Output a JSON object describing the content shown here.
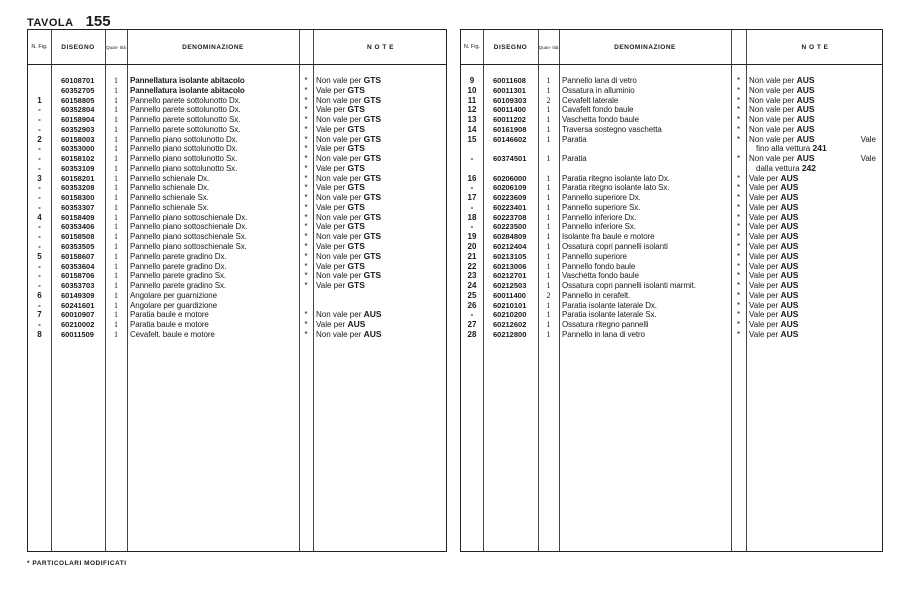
{
  "header": {
    "label": "TAVOLA",
    "number": "155"
  },
  "columns": {
    "fig": "N. Fig.",
    "disegno": "DISEGNO",
    "quantita": "Quan- tità",
    "denominazione": "DENOMINAZIONE",
    "note": "N O T E"
  },
  "footer": "* PARTICOLARI MODIFICATI",
  "left_rows": [
    {
      "fig": "",
      "code": "60108701",
      "qty": "1",
      "desc": "Pannellatura isolante abitacolo",
      "bold": true,
      "star": "*",
      "note": "Non vale per",
      "note_code": "GTS"
    },
    {
      "fig": "",
      "code": "60352705",
      "qty": "1",
      "desc": "Pannellatura isolante abitacolo",
      "bold": true,
      "star": "*",
      "note": "Vale per",
      "note_code": "GTS"
    },
    {
      "fig": "1",
      "code": "60158805",
      "qty": "1",
      "desc": "Pannello parete sottolunotto Dx.",
      "star": "*",
      "note": "Non vale per",
      "note_code": "GTS"
    },
    {
      "fig": "-",
      "code": "60352804",
      "qty": "1",
      "desc": "Pannello parete sottolunotto Dx.",
      "star": "*",
      "note": "Vale per",
      "note_code": "GTS"
    },
    {
      "fig": "-",
      "code": "60158904",
      "qty": "1",
      "desc": "Pannello parete sottolunotto Sx.",
      "star": "*",
      "note": "Non vale per",
      "note_code": "GTS"
    },
    {
      "fig": "-",
      "code": "60352903",
      "qty": "1",
      "desc": "Pannello parete sottolunotto Sx.",
      "star": "*",
      "note": "Vale per",
      "note_code": "GTS"
    },
    {
      "fig": "2",
      "code": "60158003",
      "qty": "1",
      "desc": "Pannello piano sottolunotto Dx.",
      "star": "*",
      "note": "Non vale per",
      "note_code": "GTS"
    },
    {
      "fig": "-",
      "code": "60353000",
      "qty": "1",
      "desc": "Pannello piano sottolunotto Dx.",
      "star": "*",
      "note": "Vale per",
      "note_code": "GTS"
    },
    {
      "fig": "-",
      "code": "60158102",
      "qty": "1",
      "desc": "Pannello piano sottolunotto Sx.",
      "star": "*",
      "note": "Non vale per",
      "note_code": "GTS"
    },
    {
      "fig": "-",
      "code": "60353109",
      "qty": "1",
      "desc": "Pannello piano sottolunotto Sx.",
      "star": "*",
      "note": "Vale per",
      "note_code": "GTS"
    },
    {
      "fig": "3",
      "code": "60158201",
      "qty": "1",
      "desc": "Pannello schienale Dx.",
      "star": "*",
      "note": "Non vale per",
      "note_code": "GTS"
    },
    {
      "fig": "-",
      "code": "60353208",
      "qty": "1",
      "desc": "Pannello schienale Dx.",
      "star": "*",
      "note": "Vale per",
      "note_code": "GTS"
    },
    {
      "fig": "-",
      "code": "60158300",
      "qty": "1",
      "desc": "Pannello schienale Sx.",
      "star": "*",
      "note": "Non vale per",
      "note_code": "GTS"
    },
    {
      "fig": "-",
      "code": "60353307",
      "qty": "1",
      "desc": "Pannello schienale Sx.",
      "star": "*",
      "note": "Vale per",
      "note_code": "GTS"
    },
    {
      "fig": "4",
      "code": "60158409",
      "qty": "1",
      "desc": "Pannello piano sottoschienale Dx.",
      "star": "*",
      "note": "Non vale per",
      "note_code": "GTS"
    },
    {
      "fig": "-",
      "code": "60353406",
      "qty": "1",
      "desc": "Pannello piano sottoschienale Dx.",
      "star": "*",
      "note": "Vale per",
      "note_code": "GTS"
    },
    {
      "fig": "-",
      "code": "60158508",
      "qty": "1",
      "desc": "Pannello piano sottoschienale Sx.",
      "star": "*",
      "note": "Non vale per",
      "note_code": "GTS"
    },
    {
      "fig": "-",
      "code": "60353505",
      "qty": "1",
      "desc": "Pannello piano sottoschienale Sx.",
      "star": "*",
      "note": "Vale per",
      "note_code": "GTS"
    },
    {
      "fig": "5",
      "code": "60158607",
      "qty": "1",
      "desc": "Pannello parete gradino Dx.",
      "star": "*",
      "note": "Non vale per",
      "note_code": "GTS"
    },
    {
      "fig": "-",
      "code": "60353604",
      "qty": "1",
      "desc": "Pannello parete gradino Dx.",
      "star": "*",
      "note": "Vale per",
      "note_code": "GTS"
    },
    {
      "fig": "-",
      "code": "60158706",
      "qty": "1",
      "desc": "Pannello parete gradino Sx.",
      "star": "*",
      "note": "Non vale per",
      "note_code": "GTS"
    },
    {
      "fig": "-",
      "code": "60353703",
      "qty": "1",
      "desc": "Pannello parete gradino Sx.",
      "star": "*",
      "note": "Vale per",
      "note_code": "GTS"
    },
    {
      "fig": "6",
      "code": "60149309",
      "qty": "1",
      "desc": "Angolare per guarnizione",
      "star": "",
      "note": "",
      "note_code": ""
    },
    {
      "fig": "-",
      "code": "60241601",
      "qty": "1",
      "desc": "Angolare per guardizione",
      "star": "",
      "note": "",
      "note_code": ""
    },
    {
      "fig": "7",
      "code": "60010907",
      "qty": "1",
      "desc": "Paratia baule e motore",
      "star": "*",
      "note": "Non vale per",
      "note_code": "AUS"
    },
    {
      "fig": "-",
      "code": "60210002",
      "qty": "1",
      "desc": "Paratia baule e motore",
      "star": "*",
      "note": "Vale per",
      "note_code": "AUS"
    },
    {
      "fig": "8",
      "code": "60011509",
      "qty": "1",
      "desc": "Cevafelt. baule e motore",
      "star": "*",
      "note": "Non vale per",
      "note_code": "AUS"
    }
  ],
  "right_rows": [
    {
      "fig": "9",
      "code": "60011608",
      "qty": "1",
      "desc": "Pannello lana di vetro",
      "star": "*",
      "note": "Non vale per",
      "note_code": "AUS"
    },
    {
      "fig": "10",
      "code": "60011301",
      "qty": "1",
      "desc": "Ossatura in alluminio",
      "star": "*",
      "note": "Non vale per",
      "note_code": "AUS"
    },
    {
      "fig": "11",
      "code": "60109303",
      "qty": "2",
      "desc": "Cevafelt laterale",
      "star": "*",
      "note": "Non vale per",
      "note_code": "AUS"
    },
    {
      "fig": "12",
      "code": "60011400",
      "qty": "1",
      "desc": "Cavafelt fondo baule",
      "star": "*",
      "note": "Non vale per",
      "note_code": "AUS"
    },
    {
      "fig": "13",
      "code": "60011202",
      "qty": "1",
      "desc": "Vaschetta fondo baule",
      "star": "*",
      "note": "Non vale per",
      "note_code": "AUS"
    },
    {
      "fig": "14",
      "code": "60161908",
      "qty": "1",
      "desc": "Traversa sostegno vaschetta",
      "star": "*",
      "note": "Non vale per",
      "note_code": "AUS"
    },
    {
      "fig": "15",
      "code": "60146602",
      "qty": "1",
      "desc": "Paratia",
      "star": "*",
      "note": "Non vale per",
      "note_code": "AUS",
      "note_extra": "Vale"
    },
    {
      "fig": "",
      "code": "",
      "qty": "",
      "desc": "",
      "star": "",
      "note": "fino alla vettura",
      "note_code": "241",
      "indent": true
    },
    {
      "fig": "-",
      "code": "60374501",
      "qty": "1",
      "desc": "Paratia",
      "star": "*",
      "note": "Non vale per",
      "note_code": "AUS",
      "note_extra": "Vale",
      "half": true
    },
    {
      "fig": "",
      "code": "",
      "qty": "",
      "desc": "",
      "star": "",
      "note": "dalla vettura",
      "note_code": "242",
      "indent": true,
      "half": true
    },
    {
      "fig": "16",
      "code": "60206000",
      "qty": "1",
      "desc": "Paratia ritegno isolante lato Dx.",
      "star": "*",
      "note": "Vale per",
      "note_code": "AUS"
    },
    {
      "fig": "-",
      "code": "60206109",
      "qty": "1",
      "desc": "Paratia ritegno isolante lato Sx.",
      "star": "*",
      "note": "Vale per",
      "note_code": "AUS"
    },
    {
      "fig": "17",
      "code": "60223609",
      "qty": "1",
      "desc": "Pannello superiore Dx.",
      "star": "*",
      "note": "Vale per",
      "note_code": "AUS"
    },
    {
      "fig": "-",
      "code": "60223401",
      "qty": "1",
      "desc": "Pannello superiore Sx.",
      "star": "*",
      "note": "Vale per",
      "note_code": "AUS"
    },
    {
      "fig": "18",
      "code": "60223708",
      "qty": "1",
      "desc": "Pannello inferiore Dx.",
      "star": "*",
      "note": "Vale per",
      "note_code": "AUS"
    },
    {
      "fig": "-",
      "code": "60223500",
      "qty": "1",
      "desc": "Pannello inferiore Sx.",
      "star": "*",
      "note": "Vale per",
      "note_code": "AUS"
    },
    {
      "fig": "19",
      "code": "60284809",
      "qty": "1",
      "desc": "Isolante fra baule e motore",
      "star": "*",
      "note": "Vale per",
      "note_code": "AUS"
    },
    {
      "fig": "20",
      "code": "60212404",
      "qty": "1",
      "desc": "Ossatura copri pannelli isolanti",
      "star": "*",
      "note": "Vale per",
      "note_code": "AUS"
    },
    {
      "fig": "21",
      "code": "60213105",
      "qty": "1",
      "desc": "Pannello superiore",
      "star": "*",
      "note": "Vale per",
      "note_code": "AUS"
    },
    {
      "fig": "22",
      "code": "60213006",
      "qty": "1",
      "desc": "Pannello fondo baule",
      "star": "*",
      "note": "Vale per",
      "note_code": "AUS"
    },
    {
      "fig": "23",
      "code": "60212701",
      "qty": "1",
      "desc": "Vaschetta fondo baule",
      "star": "*",
      "note": "Vale per",
      "note_code": "AUS"
    },
    {
      "fig": "24",
      "code": "60212503",
      "qty": "1",
      "desc": "Ossatura copri pannelli isolanti marmit.",
      "star": "*",
      "note": "Vale per",
      "note_code": "AUS"
    },
    {
      "fig": "25",
      "code": "60011400",
      "qty": "2",
      "desc": "Pannello in cerafelt.",
      "star": "*",
      "note": "Vale per",
      "note_code": "AUS"
    },
    {
      "fig": "26",
      "code": "60210101",
      "qty": "1",
      "desc": "Paratia isolante laterale Dx.",
      "star": "*",
      "note": "Vale per",
      "note_code": "AUS"
    },
    {
      "fig": "-",
      "code": "60210200",
      "qty": "1",
      "desc": "Paratia isolante laterale Sx.",
      "star": "*",
      "note": "Vale per",
      "note_code": "AUS"
    },
    {
      "fig": "27",
      "code": "60212602",
      "qty": "1",
      "desc": "Ossatura ritegno pannelli",
      "star": "*",
      "note": "Vale per",
      "note_code": "AUS"
    },
    {
      "fig": "28",
      "code": "60212800",
      "qty": "1",
      "desc": "Pannello in lana di vetro",
      "star": "*",
      "note": "Vale per",
      "note_code": "AUS"
    }
  ]
}
